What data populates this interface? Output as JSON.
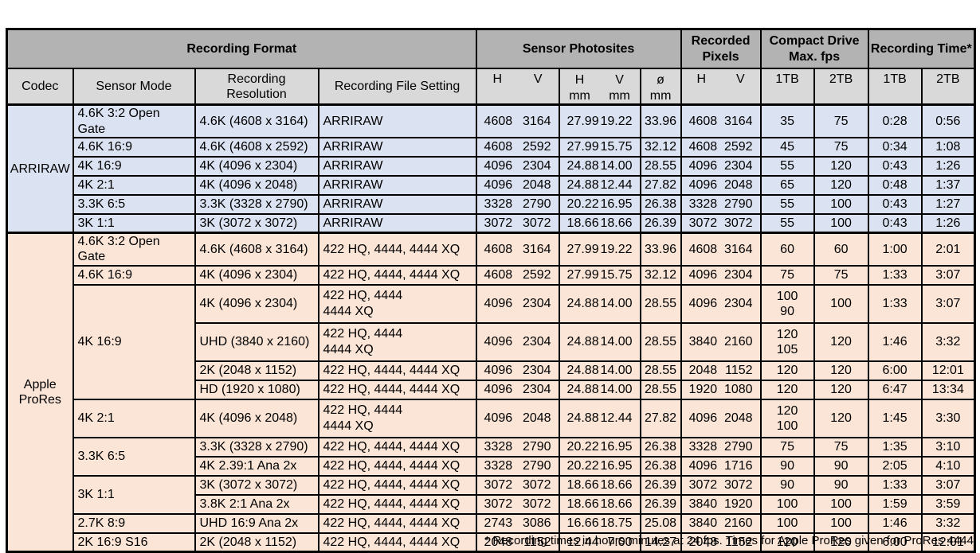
{
  "colors": {
    "header_top": "#b3b3b3",
    "header_sub": "#d9d9d9",
    "border": "#000000",
    "arriraw_bg": "#dbe2f1",
    "prores_bg": "#fbe5d7"
  },
  "table": {
    "header": {
      "recording_format": "Recording Format",
      "sensor_photosites": "Sensor Photosites",
      "recorded_pixels": "Recorded Pixels",
      "compact_drive": "Compact Drive Max. fps",
      "recording_time": "Recording Time*",
      "codec": "Codec",
      "sensor_mode": "Sensor Mode",
      "recording_resolution": "Recording Resolution",
      "recording_file_setting": "Recording File Setting",
      "h": "H",
      "v": "V",
      "mm": "mm",
      "dia": "ø",
      "tb1": "1TB",
      "tb2": "2TB"
    },
    "sections": [
      {
        "codec_lines": [
          "ARRIRAW"
        ],
        "color": "#dbe2f1",
        "rows": [
          {
            "mode": "4.6K 3:2 Open Gate",
            "mode_span": 1,
            "res": "4.6K (4608 x 3164)",
            "file": [
              "ARRIRAW"
            ],
            "ph": [
              "4608",
              "3164"
            ],
            "mm": [
              "27.99",
              "19.22"
            ],
            "dia": "33.96",
            "rp": [
              "4608",
              "3164"
            ],
            "fps1": [
              "35"
            ],
            "fps2": [
              "75"
            ],
            "t1": "0:28",
            "t2": "0:56"
          },
          {
            "mode": "4.6K 16:9",
            "mode_span": 1,
            "res": "4.6K (4608 x 2592)",
            "file": [
              "ARRIRAW"
            ],
            "ph": [
              "4608",
              "2592"
            ],
            "mm": [
              "27.99",
              "15.75"
            ],
            "dia": "32.12",
            "rp": [
              "4608",
              "2592"
            ],
            "fps1": [
              "45"
            ],
            "fps2": [
              "75"
            ],
            "t1": "0:34",
            "t2": "1:08"
          },
          {
            "mode": "4K 16:9",
            "mode_span": 1,
            "res": "4K (4096 x 2304)",
            "file": [
              "ARRIRAW"
            ],
            "ph": [
              "4096",
              "2304"
            ],
            "mm": [
              "24.88",
              "14.00"
            ],
            "dia": "28.55",
            "rp": [
              "4096",
              "2304"
            ],
            "fps1": [
              "55"
            ],
            "fps2": [
              "120"
            ],
            "t1": "0:43",
            "t2": "1:26"
          },
          {
            "mode": "4K 2:1",
            "mode_span": 1,
            "res": "4K (4096 x 2048)",
            "file": [
              "ARRIRAW"
            ],
            "ph": [
              "4096",
              "2048"
            ],
            "mm": [
              "24.88",
              "12.44"
            ],
            "dia": "27.82",
            "rp": [
              "4096",
              "2048"
            ],
            "fps1": [
              "65"
            ],
            "fps2": [
              "120"
            ],
            "t1": "0:48",
            "t2": "1:37"
          },
          {
            "mode": "3.3K 6:5",
            "mode_span": 1,
            "res": "3.3K (3328 x 2790)",
            "file": [
              "ARRIRAW"
            ],
            "ph": [
              "3328",
              "2790"
            ],
            "mm": [
              "20.22",
              "16.95"
            ],
            "dia": "26.38",
            "rp": [
              "3328",
              "2790"
            ],
            "fps1": [
              "55"
            ],
            "fps2": [
              "100"
            ],
            "t1": "0:43",
            "t2": "1:27"
          },
          {
            "mode": "3K 1:1",
            "mode_span": 1,
            "res": "3K (3072 x 3072)",
            "file": [
              "ARRIRAW"
            ],
            "ph": [
              "3072",
              "3072"
            ],
            "mm": [
              "18.66",
              "18.66"
            ],
            "dia": "26.39",
            "rp": [
              "3072",
              "3072"
            ],
            "fps1": [
              "55"
            ],
            "fps2": [
              "100"
            ],
            "t1": "0:43",
            "t2": "1:26"
          }
        ]
      },
      {
        "codec_lines": [
          "Apple",
          "ProRes"
        ],
        "color": "#fbe5d7",
        "rows": [
          {
            "mode": "4.6K 3:2 Open Gate",
            "mode_span": 1,
            "res": "4.6K (4608 x 3164)",
            "file": [
              "422 HQ, 4444, 4444 XQ"
            ],
            "ph": [
              "4608",
              "3164"
            ],
            "mm": [
              "27.99",
              "19.22"
            ],
            "dia": "33.96",
            "rp": [
              "4608",
              "3164"
            ],
            "fps1": [
              "60"
            ],
            "fps2": [
              "60"
            ],
            "t1": "1:00",
            "t2": "2:01"
          },
          {
            "mode": "4.6K 16:9",
            "mode_span": 1,
            "res": "4K (4096 x 2304)",
            "file": [
              "422 HQ, 4444, 4444 XQ"
            ],
            "ph": [
              "4608",
              "2592"
            ],
            "mm": [
              "27.99",
              "15.75"
            ],
            "dia": "32.12",
            "rp": [
              "4096",
              "2304"
            ],
            "fps1": [
              "75"
            ],
            "fps2": [
              "75"
            ],
            "t1": "1:33",
            "t2": "3:07"
          },
          {
            "mode": "4K 16:9",
            "mode_span": 4,
            "res": "4K (4096 x 2304)",
            "file": [
              "422 HQ, 4444",
              "4444 XQ"
            ],
            "ph": [
              "4096",
              "2304"
            ],
            "mm": [
              "24.88",
              "14.00"
            ],
            "dia": "28.55",
            "rp": [
              "4096",
              "2304"
            ],
            "fps1": [
              "100",
              "90"
            ],
            "fps2": [
              "100"
            ],
            "t1": "1:33",
            "t2": "3:07",
            "tall": true
          },
          {
            "res": "UHD (3840 x 2160)",
            "file": [
              "422 HQ, 4444",
              "4444 XQ"
            ],
            "ph": [
              "4096",
              "2304"
            ],
            "mm": [
              "24.88",
              "14.00"
            ],
            "dia": "28.55",
            "rp": [
              "3840",
              "2160"
            ],
            "fps1": [
              "120",
              "105"
            ],
            "fps2": [
              "120"
            ],
            "t1": "1:46",
            "t2": "3:32",
            "tall": true
          },
          {
            "res": "2K (2048 x 1152)",
            "file": [
              "422 HQ, 4444, 4444 XQ"
            ],
            "ph": [
              "4096",
              "2304"
            ],
            "mm": [
              "24.88",
              "14.00"
            ],
            "dia": "28.55",
            "rp": [
              "2048",
              "1152"
            ],
            "fps1": [
              "120"
            ],
            "fps2": [
              "120"
            ],
            "t1": "6:00",
            "t2": "12:01"
          },
          {
            "res": "HD (1920 x 1080)",
            "file": [
              "422 HQ, 4444, 4444 XQ"
            ],
            "ph": [
              "4096",
              "2304"
            ],
            "mm": [
              "24.88",
              "14.00"
            ],
            "dia": "28.55",
            "rp": [
              "1920",
              "1080"
            ],
            "fps1": [
              "120"
            ],
            "fps2": [
              "120"
            ],
            "t1": "6:47",
            "t2": "13:34"
          },
          {
            "mode": "4K 2:1",
            "mode_span": 1,
            "res": "4K (4096 x 2048)",
            "file": [
              "422 HQ, 4444",
              "4444 XQ"
            ],
            "ph": [
              "4096",
              "2048"
            ],
            "mm": [
              "24.88",
              "12.44"
            ],
            "dia": "27.82",
            "rp": [
              "4096",
              "2048"
            ],
            "fps1": [
              "120",
              "100"
            ],
            "fps2": [
              "120"
            ],
            "t1": "1:45",
            "t2": "3:30",
            "tall": true
          },
          {
            "mode": "3.3K 6:5",
            "mode_span": 2,
            "res": "3.3K (3328 x 2790)",
            "file": [
              "422 HQ, 4444, 4444 XQ"
            ],
            "ph": [
              "3328",
              "2790"
            ],
            "mm": [
              "20.22",
              "16.95"
            ],
            "dia": "26.38",
            "rp": [
              "3328",
              "2790"
            ],
            "fps1": [
              "75"
            ],
            "fps2": [
              "75"
            ],
            "t1": "1:35",
            "t2": "3:10"
          },
          {
            "res": "4K 2.39:1 Ana 2x",
            "file": [
              "422 HQ, 4444, 4444 XQ"
            ],
            "ph": [
              "3328",
              "2790"
            ],
            "mm": [
              "20.22",
              "16.95"
            ],
            "dia": "26.38",
            "rp": [
              "4096",
              "1716"
            ],
            "fps1": [
              "90"
            ],
            "fps2": [
              "90"
            ],
            "t1": "2:05",
            "t2": "4:10"
          },
          {
            "mode": "3K 1:1",
            "mode_span": 2,
            "res": "3K (3072 x 3072)",
            "file": [
              "422 HQ, 4444, 4444 XQ"
            ],
            "ph": [
              "3072",
              "3072"
            ],
            "mm": [
              "18.66",
              "18.66"
            ],
            "dia": "26.39",
            "rp": [
              "3072",
              "3072"
            ],
            "fps1": [
              "90"
            ],
            "fps2": [
              "90"
            ],
            "t1": "1:33",
            "t2": "3:07"
          },
          {
            "res": "3.8K 2:1 Ana 2x",
            "file": [
              "422 HQ, 4444, 4444 XQ"
            ],
            "ph": [
              "3072",
              "3072"
            ],
            "mm": [
              "18.66",
              "18.66"
            ],
            "dia": "26.39",
            "rp": [
              "3840",
              "1920"
            ],
            "fps1": [
              "100"
            ],
            "fps2": [
              "100"
            ],
            "t1": "1:59",
            "t2": "3:59"
          },
          {
            "mode": "2.7K 8:9",
            "mode_span": 1,
            "res": "UHD 16:9 Ana 2x",
            "file": [
              "422 HQ, 4444, 4444 XQ"
            ],
            "ph": [
              "2743",
              "3086"
            ],
            "mm": [
              "16.66",
              "18.75"
            ],
            "dia": "25.08",
            "rp": [
              "3840",
              "2160"
            ],
            "fps1": [
              "100"
            ],
            "fps2": [
              "100"
            ],
            "t1": "1:46",
            "t2": "3:32"
          },
          {
            "mode": "2K 16:9 S16",
            "mode_span": 1,
            "res": "2K (2048 x 1152)",
            "file": [
              "422 HQ, 4444, 4444 XQ"
            ],
            "ph": [
              "2048",
              "1152"
            ],
            "mm": [
              "12.44",
              "7.00"
            ],
            "dia": "14.27",
            "rp": [
              "2048",
              "1152"
            ],
            "fps1": [
              "120"
            ],
            "fps2": [
              "120"
            ],
            "t1": "6:00",
            "t2": "12:01"
          }
        ]
      }
    ]
  },
  "footnote": "* Recording times in hours:minutes at 24 fps. Times for Apple ProRes given for ProRes 4444"
}
